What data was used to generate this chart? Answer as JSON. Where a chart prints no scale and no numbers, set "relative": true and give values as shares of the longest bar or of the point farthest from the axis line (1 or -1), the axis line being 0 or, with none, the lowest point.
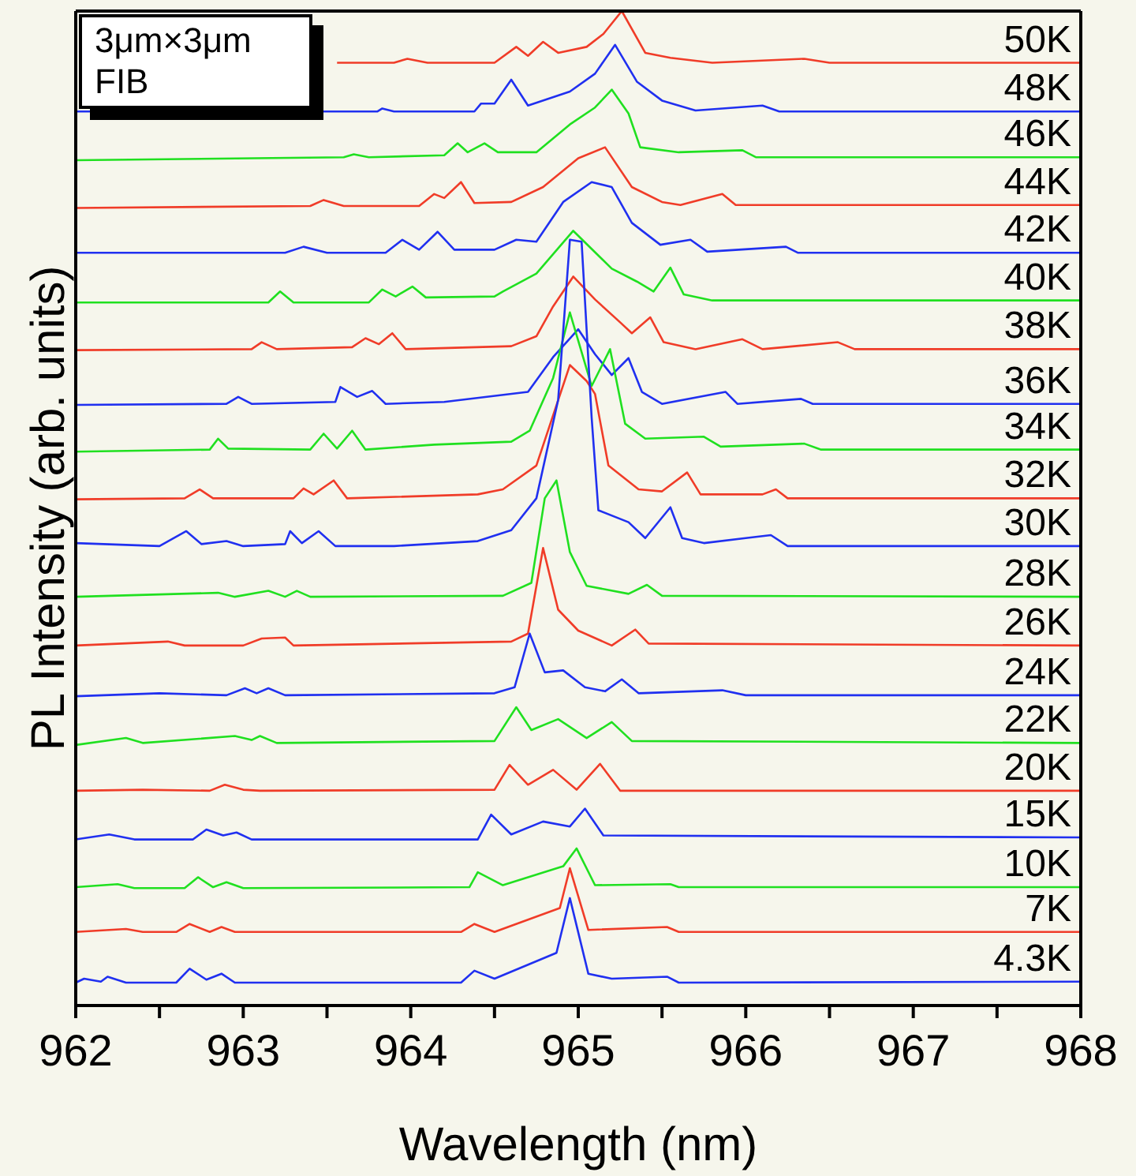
{
  "chart_data": {
    "type": "line",
    "relative": true,
    "xlabel": "Wavelength (nm)",
    "ylabel": "PL Intensity (arb. units)",
    "annotations": [
      "3μm×3μm",
      "FIB"
    ],
    "marker": "none",
    "xlim": [
      962,
      968
    ],
    "xticks": [
      962,
      {
        "value": 962.5,
        "label": null
      },
      963,
      {
        "value": 963.5,
        "label": null
      },
      964,
      {
        "value": 964.5,
        "label": null
      },
      965,
      {
        "value": 965.5,
        "label": null
      },
      966,
      {
        "value": 966.5,
        "label": null
      },
      967,
      {
        "value": 967.5,
        "label": null
      },
      968
    ],
    "series": [
      {
        "name": "50K",
        "color": "#f03c28",
        "x": [
          963.56,
          963.9,
          963.98,
          964.1,
          964.5,
          964.63,
          964.7,
          964.79,
          964.88,
          965.05,
          965.15,
          965.26,
          965.4,
          965.55,
          965.8,
          966.35,
          966.5,
          968
        ],
        "values": [
          0.948,
          0.948,
          0.952,
          0.948,
          0.948,
          0.964,
          0.955,
          0.969,
          0.958,
          0.964,
          0.977,
          1,
          0.958,
          0.953,
          0.948,
          0.952,
          0.948,
          0.948
        ]
      },
      {
        "name": "48K",
        "color": "#2030f0",
        "x": [
          962,
          963.8,
          963.83,
          963.9,
          964.38,
          964.42,
          964.5,
          964.6,
          964.7,
          964.95,
          965.1,
          965.22,
          965.35,
          965.5,
          965.7,
          966.1,
          966.2,
          968
        ],
        "values": [
          0.899,
          0.899,
          0.902,
          0.899,
          0.899,
          0.907,
          0.907,
          0.931,
          0.905,
          0.919,
          0.937,
          0.966,
          0.929,
          0.91,
          0.9,
          0.905,
          0.899,
          0.899
        ]
      },
      {
        "name": "46K",
        "color": "#20e020",
        "x": [
          962,
          963.6,
          963.66,
          963.75,
          964.2,
          964.28,
          964.34,
          964.44,
          964.52,
          964.75,
          964.95,
          965.1,
          965.2,
          965.3,
          965.37,
          965.6,
          965.98,
          966.06,
          968
        ],
        "values": [
          0.85,
          0.853,
          0.856,
          0.853,
          0.855,
          0.867,
          0.858,
          0.867,
          0.858,
          0.858,
          0.886,
          0.903,
          0.921,
          0.897,
          0.863,
          0.858,
          0.86,
          0.853,
          0.853
        ]
      },
      {
        "name": "44K",
        "color": "#f03c28",
        "x": [
          962,
          963.4,
          963.48,
          963.6,
          964.05,
          964.14,
          964.2,
          964.3,
          964.38,
          964.6,
          964.79,
          965,
          965.16,
          965.32,
          965.5,
          965.61,
          965.86,
          965.94,
          968
        ],
        "values": [
          0.802,
          0.804,
          0.81,
          0.804,
          0.804,
          0.816,
          0.812,
          0.828,
          0.807,
          0.808,
          0.823,
          0.852,
          0.863,
          0.823,
          0.808,
          0.805,
          0.816,
          0.805,
          0.805
        ]
      },
      {
        "name": "42K",
        "color": "#2030f0",
        "x": [
          962,
          963.25,
          963.36,
          963.5,
          963.85,
          963.95,
          964.05,
          964.16,
          964.26,
          964.5,
          964.63,
          964.75,
          964.91,
          965.08,
          965.2,
          965.32,
          965.49,
          965.67,
          965.77,
          966.24,
          966.31,
          968
        ],
        "values": [
          0.757,
          0.757,
          0.763,
          0.757,
          0.757,
          0.77,
          0.76,
          0.778,
          0.76,
          0.76,
          0.77,
          0.768,
          0.808,
          0.828,
          0.823,
          0.787,
          0.765,
          0.77,
          0.758,
          0.763,
          0.757,
          0.757
        ]
      },
      {
        "name": "40K",
        "color": "#20e020",
        "x": [
          962,
          963.15,
          963.22,
          963.3,
          963.75,
          963.83,
          963.91,
          964.01,
          964.09,
          964.5,
          964.55,
          964.75,
          964.97,
          965.2,
          965.35,
          965.45,
          965.55,
          965.63,
          965.8,
          968
        ],
        "values": [
          0.707,
          0.707,
          0.718,
          0.707,
          0.707,
          0.72,
          0.713,
          0.723,
          0.712,
          0.713,
          0.718,
          0.736,
          0.779,
          0.741,
          0.728,
          0.718,
          0.742,
          0.715,
          0.709,
          0.709
        ]
      },
      {
        "name": "38K",
        "color": "#f03c28",
        "x": [
          962,
          963.05,
          963.11,
          963.2,
          963.65,
          963.73,
          963.81,
          963.89,
          963.97,
          964.6,
          964.75,
          964.85,
          964.97,
          965.1,
          965.25,
          965.32,
          965.43,
          965.51,
          965.7,
          965.98,
          966.1,
          966.55,
          966.65,
          968
        ],
        "values": [
          0.659,
          0.66,
          0.667,
          0.66,
          0.662,
          0.671,
          0.665,
          0.676,
          0.66,
          0.663,
          0.673,
          0.703,
          0.733,
          0.71,
          0.687,
          0.676,
          0.692,
          0.667,
          0.66,
          0.67,
          0.66,
          0.667,
          0.66,
          0.66
        ]
      },
      {
        "name": "36K",
        "color": "#2030f0",
        "x": [
          962,
          962.9,
          962.97,
          963.05,
          963.55,
          963.58,
          963.68,
          963.77,
          963.85,
          964.2,
          964.7,
          964.85,
          965,
          965.1,
          965.2,
          965.3,
          965.38,
          965.5,
          965.88,
          965.95,
          966.33,
          966.4,
          968
        ],
        "values": [
          0.604,
          0.605,
          0.612,
          0.605,
          0.607,
          0.622,
          0.612,
          0.618,
          0.605,
          0.607,
          0.617,
          0.652,
          0.68,
          0.655,
          0.634,
          0.651,
          0.617,
          0.605,
          0.617,
          0.605,
          0.61,
          0.605,
          0.605
        ]
      },
      {
        "name": "34K",
        "color": "#20e020",
        "x": [
          962,
          962.8,
          962.85,
          962.91,
          963.4,
          963.48,
          963.56,
          963.65,
          963.73,
          964.14,
          964.6,
          964.71,
          964.85,
          964.95,
          965.08,
          965.19,
          965.28,
          965.4,
          965.75,
          965.85,
          966.35,
          966.45,
          968
        ],
        "values": [
          0.557,
          0.559,
          0.57,
          0.56,
          0.559,
          0.575,
          0.56,
          0.578,
          0.559,
          0.564,
          0.567,
          0.578,
          0.631,
          0.697,
          0.623,
          0.66,
          0.585,
          0.57,
          0.572,
          0.562,
          0.565,
          0.559,
          0.559
        ]
      },
      {
        "name": "32K",
        "color": "#f03c28",
        "x": [
          962,
          962.65,
          962.74,
          962.82,
          963.3,
          963.36,
          963.42,
          963.54,
          963.62,
          964.4,
          964.55,
          964.75,
          964.95,
          965.05,
          965.1,
          965.18,
          965.36,
          965.5,
          965.65,
          965.73,
          966.1,
          966.18,
          966.25,
          968
        ],
        "values": [
          0.509,
          0.51,
          0.519,
          0.51,
          0.51,
          0.52,
          0.514,
          0.528,
          0.51,
          0.514,
          0.519,
          0.543,
          0.644,
          0.628,
          0.615,
          0.543,
          0.519,
          0.517,
          0.536,
          0.514,
          0.514,
          0.519,
          0.51,
          0.51
        ]
      },
      {
        "name": "30K",
        "color": "#2030f0",
        "x": [
          962,
          962.5,
          962.66,
          962.75,
          962.9,
          963,
          963.25,
          963.28,
          963.35,
          963.45,
          963.55,
          963.9,
          964.4,
          964.6,
          964.75,
          964.88,
          964.95,
          965.02,
          965.08,
          965.12,
          965.3,
          965.4,
          965.55,
          965.62,
          965.75,
          966,
          966.15,
          966.25,
          968
        ],
        "values": [
          0.465,
          0.462,
          0.477,
          0.464,
          0.467,
          0.462,
          0.464,
          0.477,
          0.465,
          0.477,
          0.462,
          0.462,
          0.467,
          0.478,
          0.51,
          0.609,
          0.77,
          0.768,
          0.591,
          0.498,
          0.486,
          0.47,
          0.501,
          0.47,
          0.465,
          0.47,
          0.473,
          0.462,
          0.462
        ]
      },
      {
        "name": "28K",
        "color": "#20e020",
        "x": [
          962,
          962.85,
          962.95,
          963.15,
          963.25,
          963.32,
          963.4,
          964.55,
          964.72,
          964.8,
          964.87,
          964.95,
          965.05,
          965.3,
          965.41,
          965.5,
          968
        ],
        "values": [
          0.411,
          0.415,
          0.411,
          0.417,
          0.411,
          0.417,
          0.411,
          0.412,
          0.425,
          0.51,
          0.528,
          0.456,
          0.422,
          0.414,
          0.423,
          0.412,
          0.411
        ]
      },
      {
        "name": "26K",
        "color": "#f03c28",
        "x": [
          962,
          962.55,
          962.65,
          963,
          963.11,
          963.25,
          963.3,
          964.6,
          964.7,
          964.79,
          964.88,
          965,
          965.2,
          965.34,
          965.42,
          968
        ],
        "values": [
          0.362,
          0.366,
          0.362,
          0.362,
          0.369,
          0.37,
          0.362,
          0.366,
          0.374,
          0.46,
          0.398,
          0.377,
          0.362,
          0.378,
          0.364,
          0.362
        ]
      },
      {
        "name": "24K",
        "color": "#2030f0",
        "x": [
          962,
          962.5,
          962.9,
          963.01,
          963.08,
          963.15,
          963.25,
          964.5,
          964.62,
          964.71,
          964.8,
          964.91,
          965.04,
          965.16,
          965.26,
          965.36,
          965.86,
          966,
          968
        ],
        "values": [
          0.311,
          0.314,
          0.312,
          0.319,
          0.314,
          0.319,
          0.312,
          0.314,
          0.32,
          0.374,
          0.335,
          0.337,
          0.32,
          0.316,
          0.328,
          0.314,
          0.317,
          0.312,
          0.312
        ]
      },
      {
        "name": "22K",
        "color": "#20e020",
        "x": [
          962,
          962.3,
          962.4,
          962.95,
          963.05,
          963.1,
          963.2,
          964.5,
          964.63,
          964.72,
          964.88,
          965.05,
          965.2,
          965.32,
          968
        ],
        "values": [
          0.262,
          0.269,
          0.264,
          0.271,
          0.267,
          0.271,
          0.264,
          0.266,
          0.3,
          0.277,
          0.288,
          0.269,
          0.285,
          0.266,
          0.264
        ]
      },
      {
        "name": "20K",
        "color": "#f03c28",
        "x": [
          962,
          962.4,
          962.8,
          962.89,
          963,
          963.1,
          964.5,
          964.59,
          964.7,
          964.85,
          964.99,
          965.13,
          965.25,
          968
        ],
        "values": [
          0.216,
          0.217,
          0.216,
          0.222,
          0.217,
          0.216,
          0.217,
          0.242,
          0.222,
          0.237,
          0.217,
          0.243,
          0.216,
          0.216
        ]
      },
      {
        "name": "15K",
        "color": "#2030f0",
        "x": [
          962,
          962.2,
          962.35,
          962.7,
          962.78,
          962.88,
          962.96,
          963.05,
          964.4,
          964.48,
          964.6,
          964.79,
          964.95,
          965.04,
          965.15,
          968
        ],
        "values": [
          0.167,
          0.172,
          0.167,
          0.167,
          0.177,
          0.171,
          0.174,
          0.167,
          0.167,
          0.192,
          0.172,
          0.185,
          0.18,
          0.198,
          0.171,
          0.169
        ]
      },
      {
        "name": "10K",
        "color": "#20e020",
        "x": [
          962,
          962.25,
          962.35,
          962.65,
          962.73,
          962.82,
          962.9,
          963,
          964.35,
          964.4,
          964.55,
          964.91,
          964.99,
          965.1,
          965.55,
          965.6,
          968
        ],
        "values": [
          0.119,
          0.122,
          0.118,
          0.118,
          0.129,
          0.119,
          0.124,
          0.118,
          0.119,
          0.134,
          0.121,
          0.14,
          0.158,
          0.121,
          0.122,
          0.119,
          0.119
        ]
      },
      {
        "name": "7K",
        "color": "#f03c28",
        "x": [
          962,
          962.3,
          962.4,
          962.6,
          962.68,
          962.8,
          962.87,
          962.95,
          964.3,
          964.38,
          964.5,
          964.89,
          964.95,
          965.06,
          965.53,
          965.6,
          968
        ],
        "values": [
          0.074,
          0.077,
          0.074,
          0.074,
          0.082,
          0.074,
          0.079,
          0.074,
          0.074,
          0.082,
          0.074,
          0.098,
          0.138,
          0.076,
          0.079,
          0.074,
          0.074
        ]
      },
      {
        "name": "4.3K",
        "color": "#2030f0",
        "x": [
          962,
          962.05,
          962.15,
          962.19,
          962.3,
          962.6,
          962.68,
          962.78,
          962.87,
          962.95,
          964.3,
          964.38,
          964.5,
          964.87,
          964.95,
          965.06,
          965.2,
          965.53,
          965.6,
          968
        ],
        "values": [
          0.023,
          0.027,
          0.024,
          0.029,
          0.023,
          0.023,
          0.037,
          0.026,
          0.032,
          0.023,
          0.023,
          0.035,
          0.027,
          0.053,
          0.108,
          0.032,
          0.027,
          0.029,
          0.023,
          0.024
        ]
      }
    ]
  }
}
